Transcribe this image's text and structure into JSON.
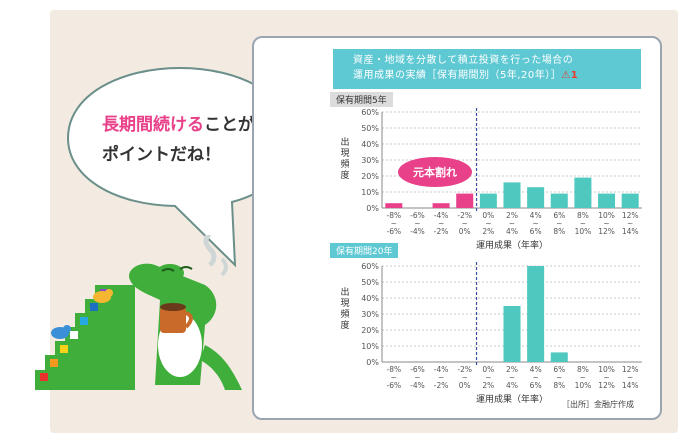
{
  "bubble": {
    "line1_pink": "長期間続ける",
    "line1_rest": "ことが",
    "line2": "ポイントだね！"
  },
  "banner": {
    "line1": "資産・地域を分散して積立投資を行った場合の",
    "line2": "運用成果の実績［保有期間別（5年,20年）］",
    "warn": "⚠1"
  },
  "colors": {
    "pink": "#e9408a",
    "teal": "#4fc9bf",
    "banner": "#5ec9d3",
    "dashed": "#3b4fa8",
    "mascot": "#3fae3a"
  },
  "annotation": "元本割れ",
  "source": "［出所］金融庁作成",
  "chart_data": [
    {
      "type": "bar",
      "section_label": "保有期間5年",
      "ylabel": "出現頻度",
      "xlabel": "運用成果（年率）",
      "ylim": [
        0,
        60
      ],
      "yticks": [
        "0%",
        "10%",
        "20%",
        "30%",
        "40%",
        "50%",
        "60%"
      ],
      "categories": [
        [
          "-8%",
          "~",
          "-6%"
        ],
        [
          "-6%",
          "~",
          "-4%"
        ],
        [
          "-4%",
          "~",
          "-2%"
        ],
        [
          "-2%",
          "~",
          "0%"
        ],
        [
          "0%",
          "~",
          "2%"
        ],
        [
          "2%",
          "~",
          "4%"
        ],
        [
          "4%",
          "~",
          "6%"
        ],
        [
          "6%",
          "~",
          "8%"
        ],
        [
          "8%",
          "~",
          "10%"
        ],
        [
          "10%",
          "~",
          "12%"
        ],
        [
          "12%",
          "~",
          "14%"
        ]
      ],
      "values": [
        3,
        0,
        3,
        9,
        9,
        16,
        13,
        9,
        19,
        9,
        9
      ],
      "colors": [
        "pink",
        "pink",
        "pink",
        "pink",
        "teal",
        "teal",
        "teal",
        "teal",
        "teal",
        "teal",
        "teal"
      ]
    },
    {
      "type": "bar",
      "section_label": "保有期間20年",
      "ylabel": "出現頻度",
      "xlabel": "運用成果（年率）",
      "ylim": [
        0,
        60
      ],
      "yticks": [
        "0%",
        "10%",
        "20%",
        "30%",
        "40%",
        "50%",
        "60%"
      ],
      "categories": [
        [
          "-8%",
          "~",
          "-6%"
        ],
        [
          "-6%",
          "~",
          "-4%"
        ],
        [
          "-4%",
          "~",
          "-2%"
        ],
        [
          "-2%",
          "~",
          "0%"
        ],
        [
          "0%",
          "~",
          "2%"
        ],
        [
          "2%",
          "~",
          "4%"
        ],
        [
          "4%",
          "~",
          "6%"
        ],
        [
          "6%",
          "~",
          "8%"
        ],
        [
          "8%",
          "~",
          "10%"
        ],
        [
          "10%",
          "~",
          "12%"
        ],
        [
          "12%",
          "~",
          "14%"
        ]
      ],
      "values": [
        0,
        0,
        0,
        0,
        0,
        35,
        60,
        6,
        0,
        0,
        0
      ],
      "colors": [
        "teal",
        "teal",
        "teal",
        "teal",
        "teal",
        "teal",
        "teal",
        "teal",
        "teal",
        "teal",
        "teal"
      ]
    }
  ]
}
